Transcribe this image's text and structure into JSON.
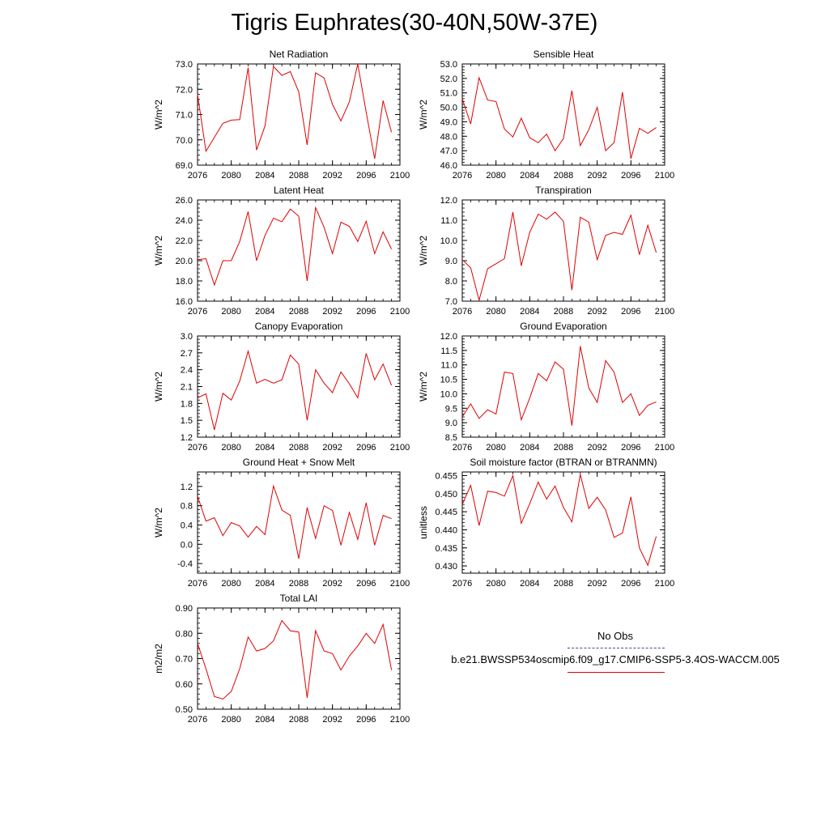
{
  "title": "Tigris Euphrates(30-40N,50W-37E)",
  "colors": {
    "series": "#e00000",
    "obs": "#4a4a8a"
  },
  "legend": {
    "obs_label": "No Obs",
    "case_label": "b.e21.BWSSP534oscmip6.f09_g17.CMIP6-SSP5-3.4OS-WACCM.005"
  },
  "chart_data": [
    {
      "type": "line",
      "title": "Net Radiation",
      "ylabel": "W/m^2",
      "xlim": [
        2076,
        2100
      ],
      "ylim": [
        69.0,
        73.0
      ],
      "xticks": [
        2076,
        2080,
        2084,
        2088,
        2092,
        2096,
        2100
      ],
      "xtick_labels": [
        "2076",
        "2080",
        "2084",
        "2088",
        "2092",
        "2096",
        "2100"
      ],
      "yticks": [
        69.0,
        70.0,
        71.0,
        72.0,
        73.0
      ],
      "ytick_labels": [
        "69.0",
        "70.0",
        "71.0",
        "72.0",
        "73.0"
      ],
      "x": [
        2076,
        2077,
        2078,
        2079,
        2080,
        2081,
        2082,
        2083,
        2084,
        2085,
        2086,
        2087,
        2088,
        2089,
        2090,
        2091,
        2092,
        2093,
        2094,
        2095,
        2096,
        2097,
        2098,
        2099
      ],
      "values": [
        71.8,
        69.55,
        70.1,
        70.65,
        70.78,
        70.8,
        72.85,
        69.6,
        70.55,
        72.9,
        72.55,
        72.7,
        71.9,
        69.8,
        72.65,
        72.45,
        71.4,
        70.75,
        71.5,
        73.0,
        71.1,
        69.25,
        71.55,
        70.3
      ]
    },
    {
      "type": "line",
      "title": "Sensible Heat",
      "ylabel": "W/m^2",
      "xlim": [
        2076,
        2100
      ],
      "ylim": [
        46.0,
        53.0
      ],
      "xticks": [
        2076,
        2080,
        2084,
        2088,
        2092,
        2096,
        2100
      ],
      "xtick_labels": [
        "2076",
        "2080",
        "2084",
        "2088",
        "2092",
        "2096",
        "2100"
      ],
      "yticks": [
        46.0,
        47.0,
        48.0,
        49.0,
        50.0,
        51.0,
        52.0,
        53.0
      ],
      "ytick_labels": [
        "46.0",
        "47.0",
        "48.0",
        "49.0",
        "50.0",
        "51.0",
        "52.0",
        "53.0"
      ],
      "x": [
        2076,
        2077,
        2078,
        2079,
        2080,
        2081,
        2082,
        2083,
        2084,
        2085,
        2086,
        2087,
        2088,
        2089,
        2090,
        2091,
        2092,
        2093,
        2094,
        2095,
        2096,
        2097,
        2098,
        2099
      ],
      "values": [
        50.6,
        48.85,
        52.05,
        50.5,
        50.4,
        48.5,
        47.95,
        49.25,
        47.9,
        47.55,
        48.15,
        47.0,
        47.85,
        51.15,
        47.35,
        48.45,
        50.0,
        47.0,
        47.55,
        51.05,
        46.45,
        48.55,
        48.2,
        48.6
      ]
    },
    {
      "type": "line",
      "title": "Latent Heat",
      "ylabel": "W/m^2",
      "xlim": [
        2076,
        2100
      ],
      "ylim": [
        16.0,
        26.0
      ],
      "xticks": [
        2076,
        2080,
        2084,
        2088,
        2092,
        2096,
        2100
      ],
      "xtick_labels": [
        "2076",
        "2080",
        "2084",
        "2088",
        "2092",
        "2096",
        "2100"
      ],
      "yticks": [
        16.0,
        18.0,
        20.0,
        22.0,
        24.0,
        26.0
      ],
      "ytick_labels": [
        "16.0",
        "18.0",
        "20.0",
        "22.0",
        "24.0",
        "26.0"
      ],
      "x": [
        2076,
        2077,
        2078,
        2079,
        2080,
        2081,
        2082,
        2083,
        2084,
        2085,
        2086,
        2087,
        2088,
        2089,
        2090,
        2091,
        2092,
        2093,
        2094,
        2095,
        2096,
        2097,
        2098,
        2099
      ],
      "values": [
        20.1,
        20.2,
        17.6,
        20.0,
        20.0,
        21.9,
        24.85,
        20.0,
        22.5,
        24.2,
        23.85,
        25.1,
        24.4,
        18.0,
        25.25,
        23.3,
        20.7,
        23.8,
        23.4,
        21.9,
        23.9,
        20.7,
        22.85,
        21.15
      ]
    },
    {
      "type": "line",
      "title": "Transpiration",
      "ylabel": "W/m^2",
      "xlim": [
        2076,
        2100
      ],
      "ylim": [
        7.0,
        12.0
      ],
      "xticks": [
        2076,
        2080,
        2084,
        2088,
        2092,
        2096,
        2100
      ],
      "xtick_labels": [
        "2076",
        "2080",
        "2084",
        "2088",
        "2092",
        "2096",
        "2100"
      ],
      "yticks": [
        7.0,
        8.0,
        9.0,
        10.0,
        11.0,
        12.0
      ],
      "ytick_labels": [
        "7.0",
        "8.0",
        "9.0",
        "10.0",
        "11.0",
        "12.0"
      ],
      "x": [
        2076,
        2077,
        2078,
        2079,
        2080,
        2081,
        2082,
        2083,
        2084,
        2085,
        2086,
        2087,
        2088,
        2089,
        2090,
        2091,
        2092,
        2093,
        2094,
        2095,
        2096,
        2097,
        2098,
        2099
      ],
      "values": [
        9.05,
        8.65,
        7.05,
        8.6,
        8.85,
        9.1,
        11.4,
        8.75,
        10.4,
        11.3,
        11.05,
        11.4,
        10.95,
        7.55,
        11.15,
        10.9,
        9.05,
        10.25,
        10.4,
        10.3,
        11.25,
        9.3,
        10.75,
        9.4
      ]
    },
    {
      "type": "line",
      "title": "Canopy Evaporation",
      "ylabel": "W/m^2",
      "xlim": [
        2076,
        2100
      ],
      "ylim": [
        1.2,
        3.0
      ],
      "xticks": [
        2076,
        2080,
        2084,
        2088,
        2092,
        2096,
        2100
      ],
      "xtick_labels": [
        "2076",
        "2080",
        "2084",
        "2088",
        "2092",
        "2096",
        "2100"
      ],
      "yticks": [
        1.2,
        1.5,
        1.8,
        2.1,
        2.4,
        2.7,
        3.0
      ],
      "ytick_labels": [
        "1.2",
        "1.5",
        "1.8",
        "2.1",
        "2.4",
        "2.7",
        "3.0"
      ],
      "x": [
        2076,
        2077,
        2078,
        2079,
        2080,
        2081,
        2082,
        2083,
        2084,
        2085,
        2086,
        2087,
        2088,
        2089,
        2090,
        2091,
        2092,
        2093,
        2094,
        2095,
        2096,
        2097,
        2098,
        2099
      ],
      "values": [
        1.9,
        1.97,
        1.33,
        1.98,
        1.86,
        2.2,
        2.73,
        2.16,
        2.23,
        2.16,
        2.22,
        2.66,
        2.5,
        1.5,
        2.4,
        2.16,
        1.99,
        2.36,
        2.15,
        1.9,
        2.69,
        2.22,
        2.5,
        2.12
      ]
    },
    {
      "type": "line",
      "title": "Ground Evaporation",
      "ylabel": "W/m^2",
      "xlim": [
        2076,
        2100
      ],
      "ylim": [
        8.5,
        12.0
      ],
      "xticks": [
        2076,
        2080,
        2084,
        2088,
        2092,
        2096,
        2100
      ],
      "xtick_labels": [
        "2076",
        "2080",
        "2084",
        "2088",
        "2092",
        "2096",
        "2100"
      ],
      "yticks": [
        8.5,
        9.0,
        9.5,
        10.0,
        10.5,
        11.0,
        11.5,
        12.0
      ],
      "ytick_labels": [
        "8.5",
        "9.0",
        "9.5",
        "10.0",
        "10.5",
        "11.0",
        "11.5",
        "12.0"
      ],
      "x": [
        2076,
        2077,
        2078,
        2079,
        2080,
        2081,
        2082,
        2083,
        2084,
        2085,
        2086,
        2087,
        2088,
        2089,
        2090,
        2091,
        2092,
        2093,
        2094,
        2095,
        2096,
        2097,
        2098,
        2099
      ],
      "values": [
        9.2,
        9.65,
        9.15,
        9.45,
        9.3,
        10.75,
        10.7,
        9.1,
        9.85,
        10.7,
        10.45,
        11.1,
        10.85,
        8.9,
        11.65,
        10.2,
        9.7,
        11.15,
        10.75,
        9.7,
        10.0,
        9.25,
        9.6,
        9.72
      ]
    },
    {
      "type": "line",
      "title": "Ground Heat + Snow Melt",
      "ylabel": "W/m^2",
      "xlim": [
        2076,
        2100
      ],
      "ylim": [
        -0.6,
        1.5
      ],
      "xticks": [
        2076,
        2080,
        2084,
        2088,
        2092,
        2096,
        2100
      ],
      "xtick_labels": [
        "2076",
        "2080",
        "2084",
        "2088",
        "2092",
        "2096",
        "2100"
      ],
      "yticks": [
        -0.4,
        0.0,
        0.4,
        0.8,
        1.2
      ],
      "ytick_labels": [
        "-0.4",
        "0.0",
        "0.4",
        "0.8",
        "1.2"
      ],
      "x": [
        2076,
        2077,
        2078,
        2079,
        2080,
        2081,
        2082,
        2083,
        2084,
        2085,
        2086,
        2087,
        2088,
        2089,
        2090,
        2091,
        2092,
        2093,
        2094,
        2095,
        2096,
        2097,
        2098,
        2099
      ],
      "values": [
        1.0,
        0.48,
        0.55,
        0.18,
        0.45,
        0.38,
        0.15,
        0.37,
        0.2,
        1.21,
        0.71,
        0.6,
        -0.3,
        0.76,
        0.12,
        0.8,
        0.7,
        -0.02,
        0.66,
        0.1,
        0.86,
        -0.02,
        0.6,
        0.53
      ]
    },
    {
      "type": "line",
      "title": "Soil moisture factor (BTRAN or BTRANMN)",
      "ylabel": "unitless",
      "xlim": [
        2076,
        2100
      ],
      "ylim": [
        0.428,
        0.456
      ],
      "xticks": [
        2076,
        2080,
        2084,
        2088,
        2092,
        2096,
        2100
      ],
      "xtick_labels": [
        "2076",
        "2080",
        "2084",
        "2088",
        "2092",
        "2096",
        "2100"
      ],
      "yticks": [
        0.43,
        0.435,
        0.44,
        0.445,
        0.45,
        0.455
      ],
      "ytick_labels": [
        "0.430",
        "0.435",
        "0.440",
        "0.445",
        "0.450",
        "0.455"
      ],
      "x": [
        2076,
        2077,
        2078,
        2079,
        2080,
        2081,
        2082,
        2083,
        2084,
        2085,
        2086,
        2087,
        2088,
        2089,
        2090,
        2091,
        2092,
        2093,
        2094,
        2095,
        2096,
        2097,
        2098,
        2099
      ],
      "values": [
        0.447,
        0.4523,
        0.4412,
        0.4507,
        0.4503,
        0.4493,
        0.455,
        0.4418,
        0.4472,
        0.4532,
        0.4485,
        0.4521,
        0.4462,
        0.4422,
        0.4553,
        0.4459,
        0.449,
        0.4455,
        0.4379,
        0.4391,
        0.4491,
        0.435,
        0.4302,
        0.4382
      ]
    },
    {
      "type": "line",
      "title": "Total LAI",
      "ylabel": "m2/m2",
      "xlim": [
        2076,
        2100
      ],
      "ylim": [
        0.5,
        0.9
      ],
      "xticks": [
        2076,
        2080,
        2084,
        2088,
        2092,
        2096,
        2100
      ],
      "xtick_labels": [
        "2076",
        "2080",
        "2084",
        "2088",
        "2092",
        "2096",
        "2100"
      ],
      "yticks": [
        0.5,
        0.6,
        0.7,
        0.8,
        0.9
      ],
      "ytick_labels": [
        "0.50",
        "0.60",
        "0.70",
        "0.80",
        "0.90"
      ],
      "x": [
        2076,
        2077,
        2078,
        2079,
        2080,
        2081,
        2082,
        2083,
        2084,
        2085,
        2086,
        2087,
        2088,
        2089,
        2090,
        2091,
        2092,
        2093,
        2094,
        2095,
        2096,
        2097,
        2098,
        2099
      ],
      "values": [
        0.76,
        0.66,
        0.55,
        0.54,
        0.57,
        0.66,
        0.785,
        0.73,
        0.74,
        0.77,
        0.85,
        0.81,
        0.805,
        0.545,
        0.81,
        0.73,
        0.72,
        0.655,
        0.71,
        0.75,
        0.8,
        0.76,
        0.835,
        0.655
      ]
    }
  ]
}
